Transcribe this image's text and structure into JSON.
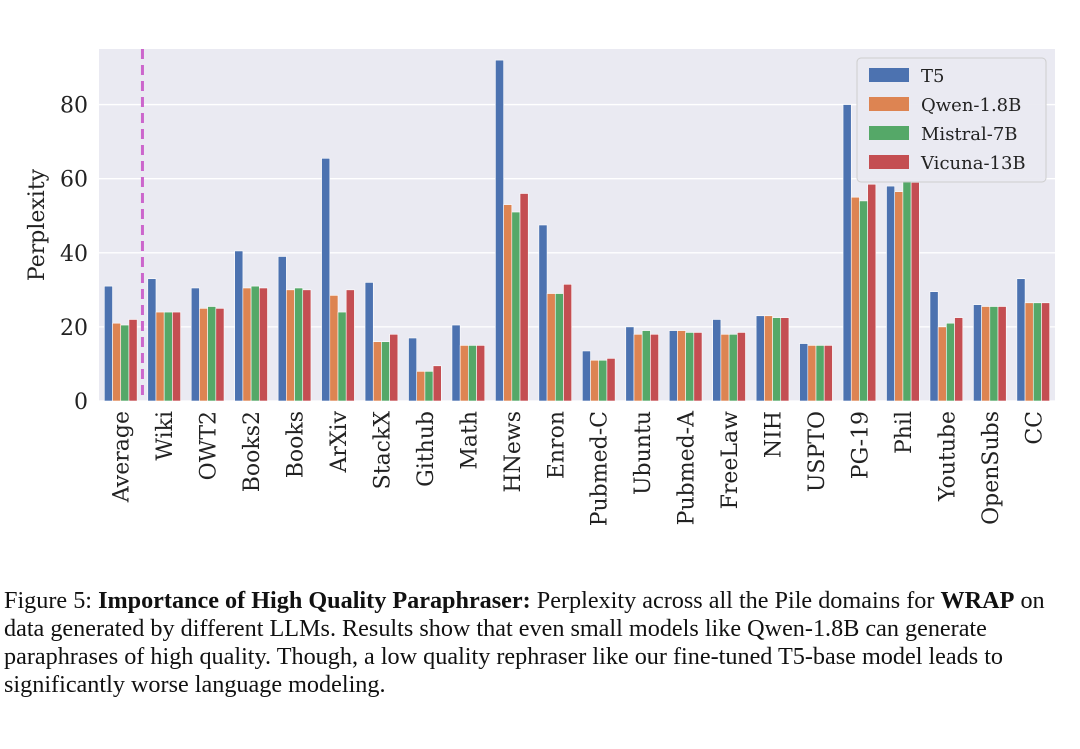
{
  "chart_data": {
    "type": "bar",
    "title": "",
    "xlabel": "",
    "ylabel": "Perplexity",
    "ylim": [
      0,
      95
    ],
    "yticks": [
      0,
      20,
      40,
      60,
      80
    ],
    "grid": true,
    "legend_position": "top-right",
    "reference_line": {
      "after_category": "Average",
      "style": "dashed",
      "color": "#cc66cc"
    },
    "categories": [
      "Average",
      "Wiki",
      "OWT2",
      "Books2",
      "Books",
      "ArXiv",
      "StackX",
      "Github",
      "Math",
      "HNews",
      "Enron",
      "Pubmed-C",
      "Ubuntu",
      "Pubmed-A",
      "FreeLaw",
      "NIH",
      "USPTO",
      "PG-19",
      "Phil",
      "Youtube",
      "OpenSubs",
      "CC"
    ],
    "series": [
      {
        "name": "T5",
        "color": "#4c72b0",
        "values": [
          31,
          33,
          30.5,
          40.5,
          39,
          65.5,
          32,
          17,
          20.5,
          92,
          47.5,
          13.5,
          20,
          19,
          22,
          23,
          15.5,
          80,
          58,
          29.5,
          26,
          33
        ]
      },
      {
        "name": "Qwen-1.8B",
        "color": "#dd8452",
        "values": [
          21,
          24,
          25,
          30.5,
          30,
          28.5,
          16,
          8,
          15,
          53,
          29,
          11,
          18,
          19,
          18,
          23,
          15,
          55,
          56.5,
          20,
          25.5,
          26.5
        ]
      },
      {
        "name": "Mistral-7B",
        "color": "#55a868",
        "values": [
          20.5,
          24,
          25.5,
          31,
          30.5,
          24,
          16,
          8,
          15,
          51,
          29,
          11,
          19,
          18.5,
          18,
          22.5,
          15,
          54,
          59.5,
          21,
          25.5,
          26.5
        ]
      },
      {
        "name": "Vicuna-13B",
        "color": "#c44e52",
        "values": [
          22,
          24,
          25,
          30.5,
          30,
          30,
          18,
          9.5,
          15,
          56,
          31.5,
          11.5,
          18,
          18.5,
          18.5,
          22.5,
          15,
          58.5,
          59,
          22.5,
          25.5,
          26.5
        ]
      }
    ]
  },
  "caption": {
    "figure_label": "Figure 5:",
    "bold_title": "Importance of High Quality Paraphraser:",
    "text_1": "Perplexity across all the Pile domains for",
    "bold_method": "WRAP",
    "text_2": "on data generated by different LLMs. Results show that even small models like Qwen-1.8B can generate paraphrases of high quality. Though, a low quality rephraser like our fine-tuned T5-base model leads to significantly worse language modeling."
  }
}
